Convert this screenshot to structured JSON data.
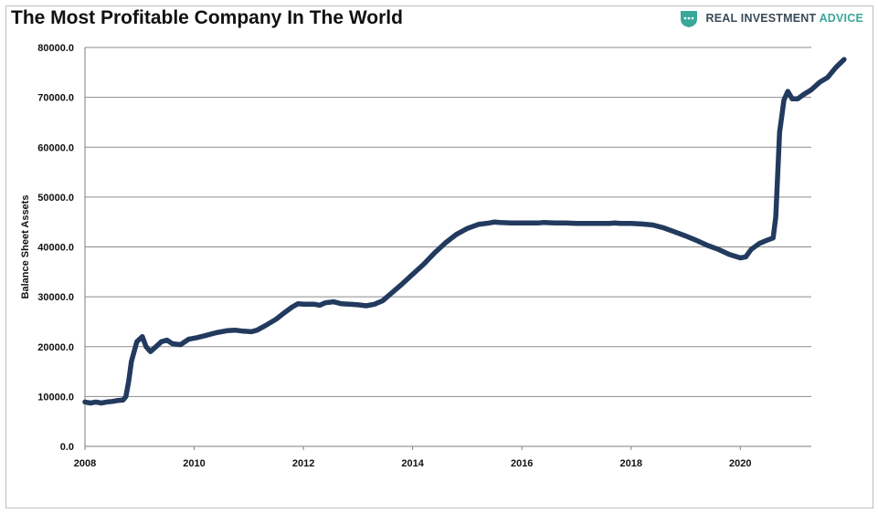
{
  "header": {
    "title": "The Most Profitable Company In The World"
  },
  "brand": {
    "text_main": "REAL INVESTMENT ",
    "text_accent": "ADVICE",
    "icon": "shield-logo-icon",
    "accent_color": "#3aa79a"
  },
  "chart_data": {
    "type": "line",
    "title": "The Most Profitable Company In The World",
    "xlabel": "",
    "ylabel": "Balance Sheet Assets",
    "xlim": [
      2008,
      2021.3
    ],
    "ylim": [
      0,
      80000
    ],
    "x_ticks": [
      "2008",
      "2010",
      "2012",
      "2014",
      "2016",
      "2018",
      "2020"
    ],
    "y_ticks": [
      "0.0",
      "10000.0",
      "20000.0",
      "30000.0",
      "40000.0",
      "50000.0",
      "60000.0",
      "70000.0",
      "80000.0"
    ],
    "grid": true,
    "legend": "none",
    "line_color": "#223a5e",
    "series": [
      {
        "values": [
          [
            2008.0,
            8900
          ],
          [
            2008.1,
            8700
          ],
          [
            2008.2,
            8900
          ],
          [
            2008.3,
            8700
          ],
          [
            2008.4,
            8900
          ],
          [
            2008.5,
            9000
          ],
          [
            2008.6,
            9200
          ],
          [
            2008.7,
            9300
          ],
          [
            2008.75,
            10000
          ],
          [
            2008.8,
            13000
          ],
          [
            2008.85,
            17000
          ],
          [
            2008.95,
            21000
          ],
          [
            2009.05,
            22000
          ],
          [
            2009.12,
            20000
          ],
          [
            2009.2,
            19000
          ],
          [
            2009.3,
            20000
          ],
          [
            2009.4,
            21000
          ],
          [
            2009.5,
            21300
          ],
          [
            2009.6,
            20600
          ],
          [
            2009.75,
            20400
          ],
          [
            2009.9,
            21500
          ],
          [
            2010.05,
            21800
          ],
          [
            2010.2,
            22200
          ],
          [
            2010.4,
            22800
          ],
          [
            2010.6,
            23200
          ],
          [
            2010.75,
            23300
          ],
          [
            2010.9,
            23100
          ],
          [
            2011.05,
            23000
          ],
          [
            2011.15,
            23300
          ],
          [
            2011.3,
            24200
          ],
          [
            2011.5,
            25500
          ],
          [
            2011.65,
            26800
          ],
          [
            2011.8,
            28000
          ],
          [
            2011.9,
            28600
          ],
          [
            2012.0,
            28500
          ],
          [
            2012.2,
            28500
          ],
          [
            2012.3,
            28300
          ],
          [
            2012.4,
            28800
          ],
          [
            2012.55,
            29000
          ],
          [
            2012.7,
            28600
          ],
          [
            2012.85,
            28500
          ],
          [
            2013.0,
            28400
          ],
          [
            2013.15,
            28200
          ],
          [
            2013.3,
            28500
          ],
          [
            2013.45,
            29200
          ],
          [
            2013.6,
            30600
          ],
          [
            2013.8,
            32500
          ],
          [
            2014.0,
            34500
          ],
          [
            2014.2,
            36500
          ],
          [
            2014.4,
            38800
          ],
          [
            2014.6,
            40800
          ],
          [
            2014.8,
            42500
          ],
          [
            2015.0,
            43700
          ],
          [
            2015.2,
            44500
          ],
          [
            2015.4,
            44800
          ],
          [
            2015.5,
            45000
          ],
          [
            2015.6,
            44900
          ],
          [
            2015.8,
            44800
          ],
          [
            2016.0,
            44800
          ],
          [
            2016.3,
            44800
          ],
          [
            2016.4,
            44900
          ],
          [
            2016.6,
            44800
          ],
          [
            2016.8,
            44800
          ],
          [
            2017.0,
            44700
          ],
          [
            2017.2,
            44700
          ],
          [
            2017.4,
            44700
          ],
          [
            2017.6,
            44700
          ],
          [
            2017.7,
            44800
          ],
          [
            2017.8,
            44700
          ],
          [
            2018.0,
            44700
          ],
          [
            2018.2,
            44600
          ],
          [
            2018.4,
            44400
          ],
          [
            2018.6,
            43800
          ],
          [
            2018.8,
            43000
          ],
          [
            2019.0,
            42200
          ],
          [
            2019.2,
            41300
          ],
          [
            2019.4,
            40300
          ],
          [
            2019.6,
            39500
          ],
          [
            2019.8,
            38500
          ],
          [
            2020.0,
            37800
          ],
          [
            2020.1,
            38000
          ],
          [
            2020.2,
            39500
          ],
          [
            2020.35,
            40700
          ],
          [
            2020.5,
            41400
          ],
          [
            2020.6,
            41800
          ],
          [
            2020.65,
            46000
          ],
          [
            2020.72,
            63000
          ],
          [
            2020.8,
            69500
          ],
          [
            2020.87,
            71200
          ],
          [
            2020.95,
            69700
          ],
          [
            2021.05,
            69700
          ],
          [
            2021.15,
            70500
          ],
          [
            2021.3,
            71500
          ],
          [
            2021.45,
            73000
          ],
          [
            2021.6,
            74000
          ],
          [
            2021.75,
            76000
          ],
          [
            2021.9,
            77600
          ]
        ]
      }
    ]
  }
}
